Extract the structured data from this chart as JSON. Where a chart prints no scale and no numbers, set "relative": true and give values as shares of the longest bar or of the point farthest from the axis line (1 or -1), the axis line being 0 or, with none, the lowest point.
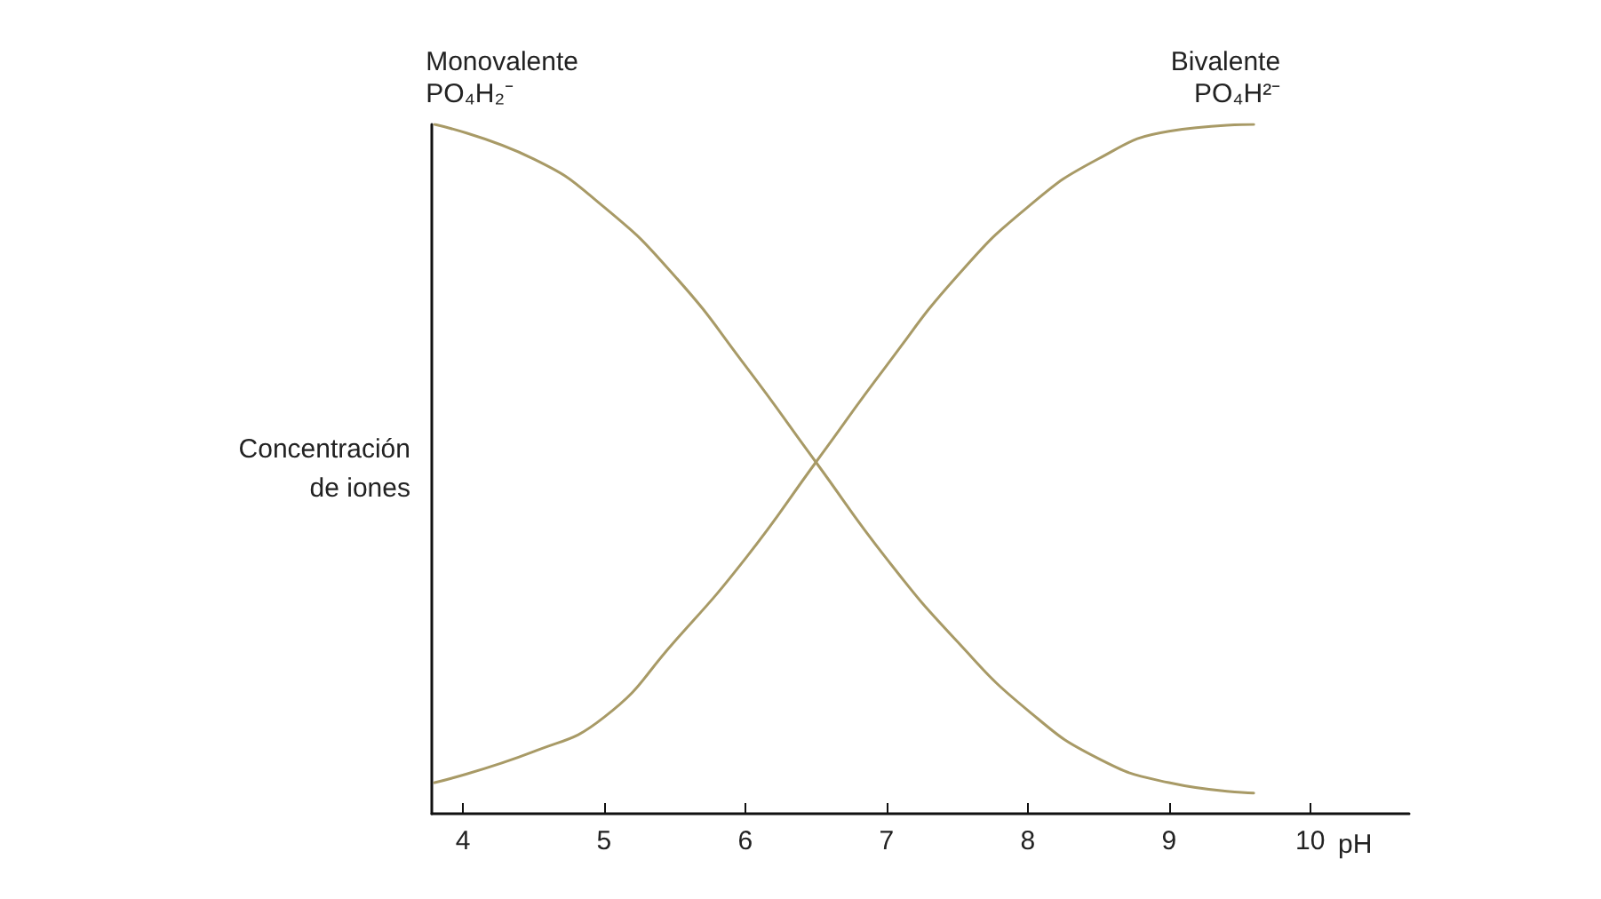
{
  "chart_data": {
    "type": "line",
    "relative": true,
    "xlabel": "pH",
    "ylabel": "Concentración\nde iones",
    "x": [
      3.8,
      4.5,
      5,
      5.5,
      6,
      6.5,
      7,
      7.5,
      8,
      8.5,
      9,
      9.6
    ],
    "xlim": [
      3.78,
      10.7
    ],
    "xticks": [
      4,
      5,
      6,
      7,
      8,
      9,
      10
    ],
    "grid": false,
    "legend": false,
    "marker": "none",
    "line_style": "solid",
    "tick_labels": "x",
    "series": [
      {
        "name": "Monovalente\nPO₄H₂⁻",
        "color": "#a89a66",
        "values": [
          1.0,
          0.95,
          0.88,
          0.78,
          0.65,
          0.51,
          0.37,
          0.25,
          0.15,
          0.08,
          0.045,
          0.03
        ]
      },
      {
        "name": "Bivalente\nPO₄H²⁻",
        "color": "#a89a66",
        "values": [
          0.045,
          0.09,
          0.14,
          0.25,
          0.37,
          0.51,
          0.65,
          0.78,
          0.88,
          0.95,
          0.99,
          1.0
        ]
      }
    ]
  }
}
